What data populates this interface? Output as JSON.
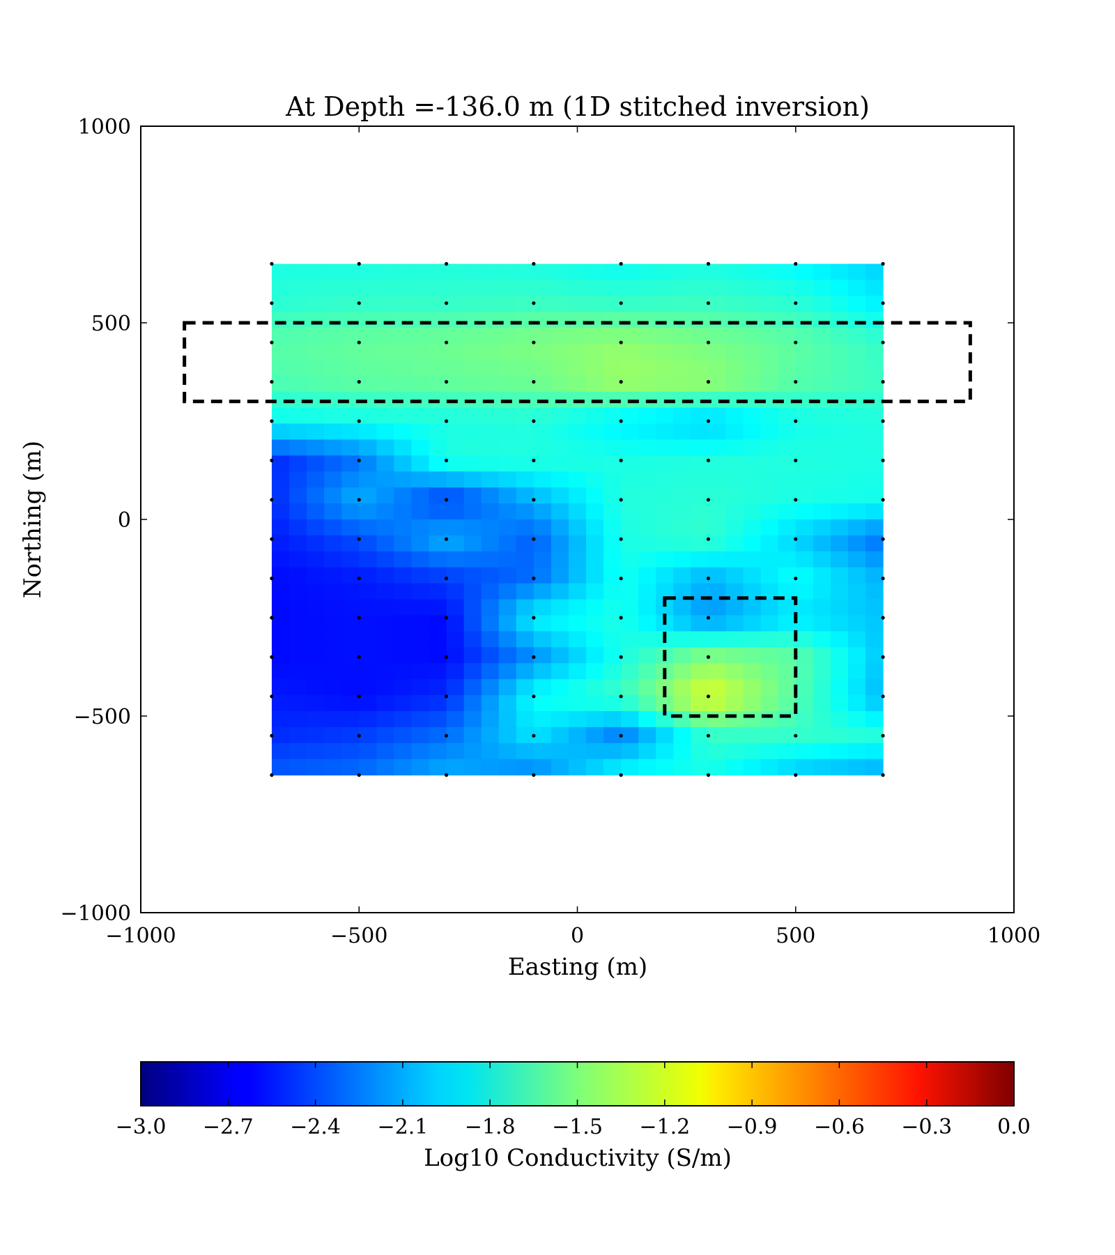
{
  "chart_data": {
    "type": "heatmap",
    "title": "At Depth =-136.0 m (1D stitched inversion)",
    "xlabel": "Easting (m)",
    "ylabel": "Northing (m)",
    "xlim": [
      -1000,
      1000
    ],
    "ylim": [
      -1000,
      1000
    ],
    "xticks": [
      -1000,
      -500,
      0,
      500,
      1000
    ],
    "yticks": [
      -1000,
      -500,
      0,
      500,
      1000
    ],
    "xtick_labels": [
      "−1000",
      "−500",
      "0",
      "500",
      "1000"
    ],
    "ytick_labels": [
      "−1000",
      "−500",
      "0",
      "500",
      "1000"
    ],
    "grid": false,
    "colormap": "jet",
    "clim": [
      -3.0,
      0.0
    ],
    "colorbar": {
      "label": "Log10 Conductivity (S/m)",
      "placement": "bottom",
      "ticks": [
        -3.0,
        -2.7,
        -2.4,
        -2.1,
        -1.8,
        -1.5,
        -1.2,
        -0.9,
        -0.6,
        -0.3,
        0.0
      ],
      "tick_labels": [
        "−3.0",
        "−2.7",
        "−2.4",
        "−2.1",
        "−1.8",
        "−1.5",
        "−1.2",
        "−0.9",
        "−0.6",
        "−0.3",
        "0.0"
      ]
    },
    "grid_x": [
      -700,
      -500,
      -300,
      -100,
      100,
      300,
      500,
      700
    ],
    "grid_y": [
      650,
      550,
      450,
      350,
      250,
      150,
      50,
      -50,
      -150,
      -250,
      -350,
      -450,
      -550,
      -650
    ],
    "values": [
      [
        -1.8,
        -1.8,
        -1.78,
        -1.8,
        -1.85,
        -1.8,
        -1.88,
        -2.02
      ],
      [
        -1.75,
        -1.72,
        -1.72,
        -1.7,
        -1.72,
        -1.7,
        -1.75,
        -1.92
      ],
      [
        -1.62,
        -1.58,
        -1.55,
        -1.5,
        -1.45,
        -1.52,
        -1.6,
        -1.72
      ],
      [
        -1.65,
        -1.6,
        -1.58,
        -1.55,
        -1.42,
        -1.45,
        -1.62,
        -1.7
      ],
      [
        -1.85,
        -1.82,
        -1.8,
        -1.78,
        -1.92,
        -2.02,
        -1.82,
        -1.78
      ],
      [
        -2.5,
        -2.28,
        -1.78,
        -1.78,
        -1.8,
        -1.78,
        -1.78,
        -1.8
      ],
      [
        -2.5,
        -2.1,
        -2.45,
        -2.1,
        -1.78,
        -1.75,
        -1.8,
        -1.82
      ],
      [
        -2.55,
        -2.4,
        -2.1,
        -2.35,
        -1.8,
        -1.72,
        -2.0,
        -2.3
      ],
      [
        -2.6,
        -2.55,
        -2.45,
        -2.3,
        -1.82,
        -2.1,
        -1.85,
        -2.1
      ],
      [
        -2.6,
        -2.58,
        -2.6,
        -1.9,
        -1.8,
        -2.2,
        -1.95,
        -2.05
      ],
      [
        -2.6,
        -2.58,
        -2.6,
        -2.2,
        -1.8,
        -1.48,
        -1.6,
        -2.05
      ],
      [
        -2.55,
        -2.6,
        -2.5,
        -1.85,
        -1.7,
        -1.2,
        -1.62,
        -2.1
      ],
      [
        -2.5,
        -2.45,
        -2.3,
        -1.95,
        -2.25,
        -1.72,
        -1.72,
        -1.78
      ],
      [
        -2.35,
        -2.3,
        -2.1,
        -2.25,
        -1.85,
        -1.82,
        -2.05,
        -2.15
      ]
    ],
    "stations_x": [
      -700,
      -500,
      -300,
      -100,
      100,
      300,
      500,
      700
    ],
    "stations_y": [
      650,
      550,
      450,
      350,
      250,
      150,
      50,
      -50,
      -150,
      -250,
      -350,
      -450,
      -550,
      -650
    ],
    "annotations": [
      {
        "name": "target-box-north",
        "style": "dashed",
        "x": [
          -900,
          900
        ],
        "y": [
          300,
          500
        ]
      },
      {
        "name": "target-box-south",
        "style": "dashed",
        "x": [
          200,
          500
        ],
        "y": [
          -500,
          -200
        ]
      }
    ]
  }
}
